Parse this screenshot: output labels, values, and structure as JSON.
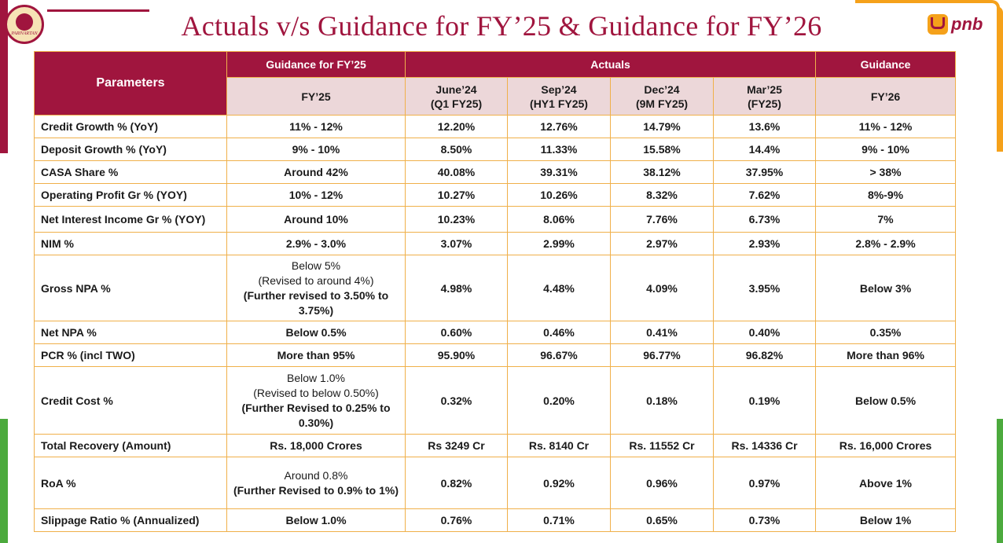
{
  "header": {
    "title": "Actuals v/s Guidance for FY’25 & Guidance for FY’26",
    "emblem_text": "PARIVARTAN",
    "logo_text": "pnb"
  },
  "table": {
    "param_header": "Parameters",
    "group_guidance_fy25": "Guidance for FY’25",
    "group_actuals": "Actuals",
    "group_guidance": "Guidance",
    "col_fy25": "FY’25",
    "col_june": "June’24",
    "col_june_sub": "(Q1 FY25)",
    "col_sep": "Sep’24",
    "col_sep_sub": "(HY1 FY25)",
    "col_dec": "Dec’24",
    "col_dec_sub": "(9M FY25)",
    "col_mar": "Mar’25",
    "col_mar_sub": "(FY25)",
    "col_fy26": "FY’26",
    "rows": [
      {
        "param": "Credit Growth % (YoY)",
        "g25": "11% - 12%",
        "jun": "12.20%",
        "sep": "12.76%",
        "dec": "14.79%",
        "mar": "13.6%",
        "g26": "11% - 12%"
      },
      {
        "param": "Deposit Growth % (YoY)",
        "g25": "9% - 10%",
        "jun": "8.50%",
        "sep": "11.33%",
        "dec": "15.58%",
        "mar": "14.4%",
        "g26": "9% - 10%"
      },
      {
        "param": "CASA Share %",
        "g25": "Around 42%",
        "jun": "40.08%",
        "sep": "39.31%",
        "dec": "38.12%",
        "mar": "37.95%",
        "g26": "> 38%"
      },
      {
        "param": "Operating Profit Gr % (YOY)",
        "g25": "10% - 12%",
        "jun": "10.27%",
        "sep": "10.26%",
        "dec": "8.32%",
        "mar": "7.62%",
        "g26": "8%-9%"
      },
      {
        "param": "Net Interest Income Gr % (YOY)",
        "g25": "Around 10%",
        "jun": "10.23%",
        "sep": "8.06%",
        "dec": "7.76%",
        "mar": "6.73%",
        "g26": "7%"
      },
      {
        "param": "NIM %",
        "g25": "2.9% - 3.0%",
        "jun": "3.07%",
        "sep": "2.99%",
        "dec": "2.97%",
        "mar": "2.93%",
        "g26": "2.8% - 2.9%"
      },
      {
        "param": "Gross NPA %",
        "g25_a": "Below 5%",
        "g25_b": "(Revised to around 4%)",
        "g25_c": "(Further revised to 3.50% to 3.75%)",
        "jun": "4.98%",
        "sep": "4.48%",
        "dec": "4.09%",
        "mar": "3.95%",
        "g26": "Below 3%"
      },
      {
        "param": "Net NPA %",
        "g25": "Below 0.5%",
        "jun": "0.60%",
        "sep": "0.46%",
        "dec": "0.41%",
        "mar": "0.40%",
        "g26": "0.35%"
      },
      {
        "param": "PCR % (incl TWO)",
        "g25": "More than 95%",
        "jun": "95.90%",
        "sep": "96.67%",
        "dec": "96.77%",
        "mar": "96.82%",
        "g26": "More than 96%"
      },
      {
        "param": "Credit Cost %",
        "g25_a": "Below 1.0%",
        "g25_b": "(Revised to below 0.50%)",
        "g25_c": "(Further Revised to 0.25% to 0.30%)",
        "jun": "0.32%",
        "sep": "0.20%",
        "dec": "0.18%",
        "mar": "0.19%",
        "g26": "Below 0.5%"
      },
      {
        "param": "Total Recovery (Amount)",
        "g25": "Rs. 18,000 Crores",
        "jun": "Rs 3249 Cr",
        "sep": "Rs. 8140 Cr",
        "dec": "Rs. 11552 Cr",
        "mar": "Rs. 14336 Cr",
        "g26": "Rs. 16,000 Crores"
      },
      {
        "param": "RoA %",
        "g25_a": "Around 0.8%",
        "g25_c": "(Further Revised to 0.9% to 1%)",
        "jun": "0.82%",
        "sep": "0.92%",
        "dec": "0.96%",
        "mar": "0.97%",
        "g26": "Above 1%"
      },
      {
        "param": "Slippage Ratio % (Annualized)",
        "g25": "Below 1.0%",
        "jun": "0.76%",
        "sep": "0.71%",
        "dec": "0.65%",
        "mar": "0.73%",
        "g26": "Below 1%"
      }
    ]
  }
}
